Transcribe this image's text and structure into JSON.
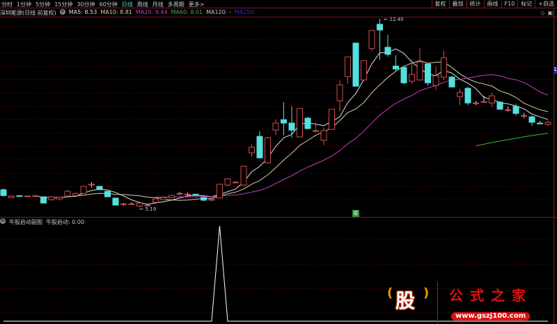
{
  "topbar": {
    "periods": [
      "分时",
      "1分钟",
      "5分钟",
      "15分钟",
      "30分钟",
      "60分钟",
      "日线",
      "周线",
      "月线",
      "多周期",
      "更多>"
    ],
    "active_period": "日线",
    "tools": [
      "复权",
      "叠加",
      "统计",
      "画线",
      "F10",
      "标记",
      "+自选"
    ]
  },
  "info": {
    "title": "深圳能源(日线 前复权)",
    "ma5": "MA5: 8.53",
    "ma10": "MA10: 8.81",
    "ma20": "MA20: 9.44",
    "ma60": "MA60: 8.01",
    "ma120": "MA120: -",
    "ma250": "MA250: -"
  },
  "indicator": {
    "name": "牛股启动副图",
    "value_label": "牛股启动: 0.00"
  },
  "marker_label": "筹",
  "right_label": "1",
  "logo": {
    "title": "公式之家",
    "url": "www.gszj100.com",
    "char": "股"
  },
  "colors": {
    "up": "#d05050",
    "down": "#54e0e0",
    "ma5": "#e0e0e0",
    "ma10": "#d8d0a0",
    "ma20": "#c040c0",
    "ma60": "#40b040",
    "grid": "#5a1010",
    "indicator": "#ffffff"
  },
  "chart_data": {
    "type": "candlestick",
    "annotations": {
      "high": "12.40",
      "low": "5.19"
    },
    "ylim": [
      5.0,
      12.6
    ],
    "candles": [
      [
        5.86,
        5.91,
        5.59,
        5.64
      ],
      [
        5.56,
        5.64,
        5.54,
        5.62
      ],
      [
        5.63,
        5.64,
        5.6,
        5.61
      ],
      [
        5.61,
        5.63,
        5.59,
        5.62
      ],
      [
        5.62,
        5.65,
        5.6,
        5.63
      ],
      [
        5.59,
        5.59,
        5.35,
        5.35
      ],
      [
        5.48,
        5.62,
        5.45,
        5.59
      ],
      [
        5.51,
        5.6,
        5.45,
        5.58
      ],
      [
        5.62,
        5.86,
        5.6,
        5.8
      ],
      [
        5.64,
        5.75,
        5.62,
        5.72
      ],
      [
        5.72,
        6.0,
        5.7,
        5.99
      ],
      [
        6.07,
        6.15,
        5.95,
        6.07
      ],
      [
        5.99,
        6.0,
        5.86,
        5.86
      ],
      [
        5.8,
        5.8,
        5.59,
        5.59
      ],
      [
        5.54,
        5.54,
        5.27,
        5.27
      ],
      [
        5.31,
        5.35,
        5.24,
        5.32
      ],
      [
        5.32,
        5.38,
        5.3,
        5.32
      ],
      [
        5.24,
        5.35,
        5.19,
        5.35
      ],
      [
        5.26,
        5.3,
        5.22,
        5.27
      ],
      [
        5.38,
        5.51,
        5.36,
        5.51
      ],
      [
        5.48,
        5.56,
        5.46,
        5.56
      ],
      [
        5.56,
        5.67,
        5.54,
        5.64
      ],
      [
        5.72,
        5.78,
        5.65,
        5.72
      ],
      [
        5.69,
        5.75,
        5.62,
        5.69
      ],
      [
        5.69,
        5.7,
        5.64,
        5.64
      ],
      [
        5.56,
        5.58,
        5.43,
        5.46
      ],
      [
        5.47,
        5.51,
        5.43,
        5.49
      ],
      [
        5.54,
        6.07,
        5.52,
        6.07
      ],
      [
        6.04,
        6.3,
        6.0,
        6.28
      ],
      [
        6.15,
        6.18,
        6.12,
        6.15
      ],
      [
        6.04,
        6.76,
        6.02,
        6.76
      ],
      [
        7.27,
        7.6,
        7.12,
        7.48
      ],
      [
        7.9,
        8.1,
        7.05,
        7.08
      ],
      [
        6.89,
        7.88,
        6.87,
        7.85
      ],
      [
        8.14,
        8.55,
        7.95,
        8.41
      ],
      [
        8.54,
        9.21,
        7.95,
        8.41
      ],
      [
        8.41,
        9.05,
        7.85,
        8.14
      ],
      [
        7.88,
        8.97,
        7.86,
        8.97
      ],
      [
        8.6,
        8.65,
        8.17,
        8.2
      ],
      [
        8.09,
        8.41,
        8.05,
        8.12
      ],
      [
        7.75,
        8.25,
        7.57,
        8.12
      ],
      [
        8.17,
        8.94,
        8.15,
        8.94
      ],
      [
        9.26,
        10.05,
        8.85,
        9.87
      ],
      [
        10.19,
        10.94,
        9.92,
        10.94
      ],
      [
        11.47,
        11.47,
        9.82,
        9.82
      ],
      [
        10.06,
        10.8,
        10.03,
        10.8
      ],
      [
        11.26,
        11.95,
        11.15,
        11.95
      ],
      [
        12.19,
        12.4,
        10.83,
        11.97
      ],
      [
        11.31,
        11.79,
        10.95,
        11.04
      ],
      [
        10.59,
        11.0,
        10.4,
        10.48
      ],
      [
        10.54,
        10.6,
        9.9,
        9.95
      ],
      [
        10.01,
        10.85,
        9.92,
        10.27
      ],
      [
        10.06,
        11.28,
        10.03,
        10.75
      ],
      [
        10.67,
        10.67,
        9.85,
        9.95
      ],
      [
        9.85,
        10.56,
        9.68,
        10.22
      ],
      [
        10.17,
        11.18,
        10.06,
        10.91
      ],
      [
        10.17,
        10.22,
        9.79,
        9.79
      ],
      [
        9.42,
        9.72,
        9.1,
        9.58
      ],
      [
        9.74,
        9.8,
        9.1,
        9.18
      ],
      [
        9.18,
        9.26,
        9.1,
        9.18
      ],
      [
        9.23,
        9.45,
        9.21,
        9.23
      ],
      [
        9.18,
        9.58,
        9.02,
        9.45
      ],
      [
        9.21,
        9.25,
        8.94,
        8.94
      ],
      [
        8.92,
        9.05,
        8.85,
        8.92
      ],
      [
        9.05,
        9.15,
        8.7,
        8.78
      ],
      [
        8.7,
        8.8,
        8.6,
        8.7
      ],
      [
        8.65,
        8.7,
        8.3,
        8.44
      ],
      [
        8.41,
        8.5,
        8.38,
        8.38
      ],
      [
        8.36,
        8.5,
        8.3,
        8.44
      ]
    ],
    "ma_periods": [
      5,
      10,
      20,
      60
    ],
    "indicator_values": [
      0,
      0,
      0,
      0,
      0,
      0,
      0,
      0,
      0,
      0,
      0,
      0,
      0,
      0,
      0,
      0,
      0,
      0,
      0,
      0,
      0,
      0,
      0,
      0,
      0,
      0,
      0,
      1,
      0,
      0,
      0,
      0,
      0,
      0,
      0,
      0,
      0,
      0,
      0,
      0,
      0,
      0,
      0,
      0,
      0,
      0,
      0,
      0,
      0,
      0,
      0,
      0,
      0,
      0,
      0,
      0,
      0,
      0,
      0,
      0,
      0,
      0,
      0,
      0,
      0,
      0,
      0,
      0,
      0
    ]
  }
}
